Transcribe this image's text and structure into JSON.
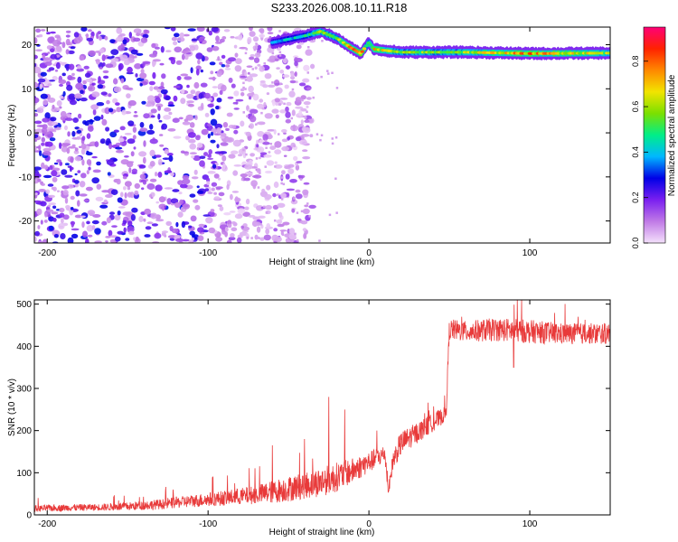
{
  "figure_title": "S233.2026.008.10.11.R18",
  "chart_data": [
    {
      "type": "heatmap",
      "title": "S233.2026.008.10.11.R18",
      "xlabel": "Height of straight line (km)",
      "ylabel": "Frequency (Hz)",
      "xlim": [
        -208,
        150
      ],
      "ylim": [
        -25,
        24
      ],
      "xticks": [
        -200,
        -100,
        0,
        100
      ],
      "xtick_labels": [
        "-200",
        "-100",
        "0",
        "100"
      ],
      "yticks": [
        -20,
        -10,
        0,
        10,
        20
      ],
      "ytick_labels": [
        "-20",
        "-10",
        "0",
        "10",
        "20"
      ],
      "colorbar": {
        "label": "Normalized spectral amplitude",
        "range": [
          0.0,
          0.95
        ],
        "ticks": [
          0.0,
          0.2,
          0.4,
          0.6,
          0.8
        ],
        "tick_labels": [
          "0.0",
          "0.2",
          "0.4",
          "0.6",
          "0.8"
        ],
        "colors": [
          "#f4e0fb",
          "#c07ae6",
          "#7a1ff0",
          "#0000e6",
          "#00b7ff",
          "#00ee88",
          "#7be000",
          "#f2e400",
          "#ff8800",
          "#ff2200",
          "#ff0077"
        ]
      },
      "ridge": {
        "description": "narrow high-amplitude frequency band",
        "points": [
          [
            -60,
            20.5
          ],
          [
            -40,
            22.0
          ],
          [
            -30,
            23.0
          ],
          [
            -20,
            21.5
          ],
          [
            -12,
            19.5
          ],
          [
            -5,
            18.0
          ],
          [
            0,
            20.5
          ],
          [
            3,
            19.0
          ],
          [
            20,
            18.3
          ],
          [
            60,
            18.3
          ],
          [
            100,
            18.0
          ],
          [
            150,
            18.1
          ]
        ],
        "peak_amplitudes": [
          0.35,
          0.45,
          0.6,
          0.55,
          0.7,
          0.8,
          0.5,
          0.7,
          0.55,
          0.6,
          0.75,
          0.6
        ]
      },
      "noise_region": {
        "x_range": [
          -208,
          -60
        ],
        "amplitude_range": [
          0.05,
          0.3
        ]
      }
    },
    {
      "type": "line",
      "xlabel": "Height of straight line (km)",
      "ylabel": "SNR (10 * v/v)",
      "xlim": [
        -208,
        150
      ],
      "ylim": [
        0,
        510
      ],
      "xticks": [
        -200,
        -100,
        0,
        100
      ],
      "xtick_labels": [
        "-200",
        "-100",
        "0",
        "100"
      ],
      "yticks": [
        0,
        100,
        200,
        300,
        400,
        500
      ],
      "ytick_labels": [
        "0",
        "100",
        "200",
        "300",
        "400",
        "500"
      ],
      "series": [
        {
          "name": "SNR",
          "color": "#e83a3a",
          "x": [
            -208,
            -190,
            -170,
            -150,
            -130,
            -110,
            -90,
            -70,
            -60,
            -50,
            -40,
            -30,
            -20,
            -10,
            0,
            10,
            12,
            15,
            20,
            30,
            40,
            48,
            50,
            60,
            80,
            100,
            120,
            150
          ],
          "values": [
            15,
            17,
            18,
            20,
            25,
            33,
            40,
            48,
            55,
            62,
            70,
            78,
            90,
            105,
            125,
            145,
            55,
            130,
            170,
            195,
            220,
            240,
            440,
            435,
            440,
            435,
            430,
            430
          ],
          "noise": [
            8,
            8,
            8,
            10,
            12,
            15,
            18,
            22,
            28,
            30,
            32,
            35,
            35,
            30,
            25,
            22,
            10,
            25,
            28,
            25,
            22,
            18,
            25,
            25,
            28,
            28,
            25,
            25
          ],
          "spikes": [
            [
              -60,
              165
            ],
            [
              -40,
              180
            ],
            [
              -25,
              280
            ],
            [
              -15,
              250
            ],
            [
              5,
              200
            ],
            [
              90,
              350
            ],
            [
              95,
              510
            ],
            [
              130,
              470
            ]
          ]
        }
      ]
    }
  ]
}
